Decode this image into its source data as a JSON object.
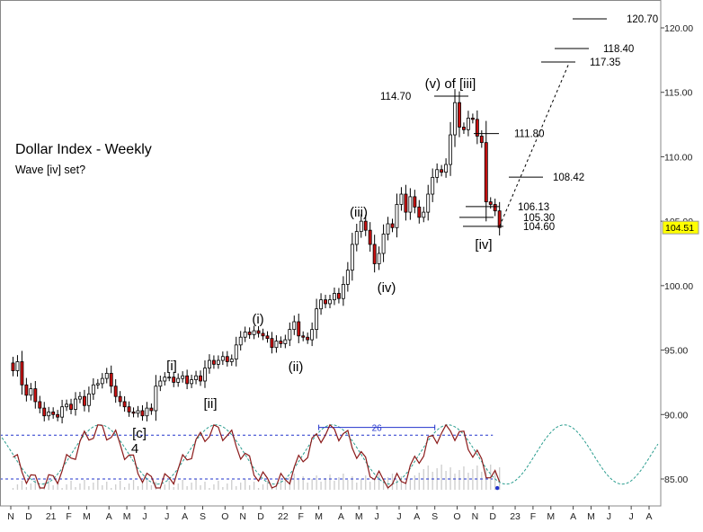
{
  "chart_data": {
    "type": "candlestick",
    "title": "Dollar Index - Weekly",
    "subtitle": "Wave [iv] set?",
    "y_ticks": [
      85,
      90,
      95,
      100,
      105,
      110,
      115,
      120
    ],
    "y_tick_labels": [
      "85.00",
      "90.00",
      "95.00",
      "100.00",
      "105.00",
      "110.00",
      "115.00",
      "120.00"
    ],
    "ylim": [
      83.4,
      123.5
    ],
    "x_ticks": [
      {
        "label": "N",
        "week": 0
      },
      {
        "label": "D",
        "week": 4
      },
      {
        "label": "21",
        "week": 9
      },
      {
        "label": "F",
        "week": 13
      },
      {
        "label": "M",
        "week": 17
      },
      {
        "label": "A",
        "week": 22
      },
      {
        "label": "M",
        "week": 26
      },
      {
        "label": "J",
        "week": 30
      },
      {
        "label": "J",
        "week": 35
      },
      {
        "label": "A",
        "week": 39
      },
      {
        "label": "S",
        "week": 43
      },
      {
        "label": "O",
        "week": 48
      },
      {
        "label": "N",
        "week": 52
      },
      {
        "label": "D",
        "week": 56
      },
      {
        "label": "22",
        "week": 61
      },
      {
        "label": "F",
        "week": 65
      },
      {
        "label": "M",
        "week": 69
      },
      {
        "label": "A",
        "week": 74
      },
      {
        "label": "M",
        "week": 78
      },
      {
        "label": "J",
        "week": 82
      },
      {
        "label": "J",
        "week": 87
      },
      {
        "label": "A",
        "week": 91
      },
      {
        "label": "S",
        "week": 95
      },
      {
        "label": "O",
        "week": 100
      },
      {
        "label": "N",
        "week": 104
      },
      {
        "label": "D",
        "week": 108
      },
      {
        "label": "23",
        "week": 113
      },
      {
        "label": "F",
        "week": 117
      },
      {
        "label": "M",
        "week": 121
      },
      {
        "label": "A",
        "week": 126
      },
      {
        "label": "M",
        "week": 130
      },
      {
        "label": "J",
        "week": 134
      },
      {
        "label": "J",
        "week": 139
      },
      {
        "label": "A",
        "week": 143
      }
    ],
    "series_close": [
      93.4,
      94.1,
      92.3,
      91.5,
      92.0,
      91.0,
      90.5,
      89.9,
      90.2,
      90.0,
      89.8,
      90.6,
      90.8,
      90.4,
      91.2,
      91.4,
      90.7,
      91.6,
      92.3,
      92.4,
      92.8,
      93.2,
      92.2,
      91.4,
      91.0,
      90.6,
      90.2,
      90.1,
      90.3,
      89.9,
      90.5,
      90.3,
      92.2,
      92.6,
      92.9,
      92.9,
      92.5,
      92.8,
      93.0,
      92.4,
      92.7,
      93.0,
      92.6,
      93.6,
      94.2,
      93.9,
      94.2,
      94.5,
      94.1,
      94.3,
      95.4,
      96.0,
      96.4,
      96.2,
      96.5,
      96.3,
      96.1,
      95.9,
      95.2,
      95.7,
      95.5,
      95.8,
      96.6,
      97.2,
      96.1,
      96.0,
      95.8,
      96.6,
      98.2,
      98.9,
      98.6,
      98.9,
      99.4,
      99.0,
      100.1,
      101.2,
      103.2,
      104.2,
      105.0,
      104.3,
      103.2,
      101.7,
      102.5,
      104.0,
      104.8,
      104.5,
      106.3,
      107.1,
      105.7,
      106.9,
      106.1,
      105.3,
      105.7,
      107.1,
      108.4,
      109.0,
      108.8,
      109.4,
      111.7,
      114.2,
      112.3,
      112.1,
      113.0,
      112.9,
      111.6,
      111.1,
      106.5,
      106.3,
      105.8,
      104.51
    ],
    "price_labels": [
      "120.70",
      "118.40",
      "117.35",
      "114.70",
      "111.80",
      "108.42",
      "106.13",
      "105.30",
      "104.60"
    ],
    "price_levels": [
      120.7,
      118.4,
      117.35,
      114.7,
      111.8,
      108.42,
      106.13,
      105.3,
      104.6
    ],
    "wave_labels": [
      "[i]",
      "[ii]",
      "[c]",
      "4",
      "(i)",
      "(ii)",
      "(iii)",
      "(iv)",
      "(v) of [iii]",
      "[iv]"
    ],
    "cycle_label": "26",
    "current_price": "104.51",
    "indicator_levels": [
      88.4,
      85.0
    ],
    "grid": false
  },
  "colors": {
    "bull_candle": "#ffffff",
    "bear_candle": "#cc1111",
    "oscillator": "#8b1a1a",
    "cycle_wave": "#2a9d8f",
    "band_lines": "#2233cc",
    "price_tag": "#ffff00"
  }
}
